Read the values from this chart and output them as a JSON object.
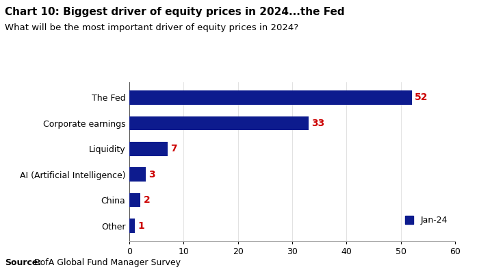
{
  "title": "Chart 10: Biggest driver of equity prices in 2024...the Fed",
  "subtitle": "What will be the most important driver of equity prices in 2024?",
  "categories": [
    "The Fed",
    "Corporate earnings",
    "Liquidity",
    "AI (Artificial Intelligence)",
    "China",
    "Other"
  ],
  "values": [
    52,
    33,
    7,
    3,
    2,
    1
  ],
  "bar_color": "#0d1b8e",
  "value_color": "#cc0000",
  "xlim": [
    0,
    60
  ],
  "xticks": [
    0,
    10,
    20,
    30,
    40,
    50,
    60
  ],
  "legend_label": "Jan-24",
  "legend_color": "#0d1b8e",
  "source_bold": "Source:",
  "source_rest": " BofA Global Fund Manager Survey",
  "background_color": "#ffffff",
  "title_fontsize": 11,
  "subtitle_fontsize": 9.5,
  "label_fontsize": 9,
  "value_fontsize": 10,
  "tick_fontsize": 9,
  "source_fontsize": 9
}
